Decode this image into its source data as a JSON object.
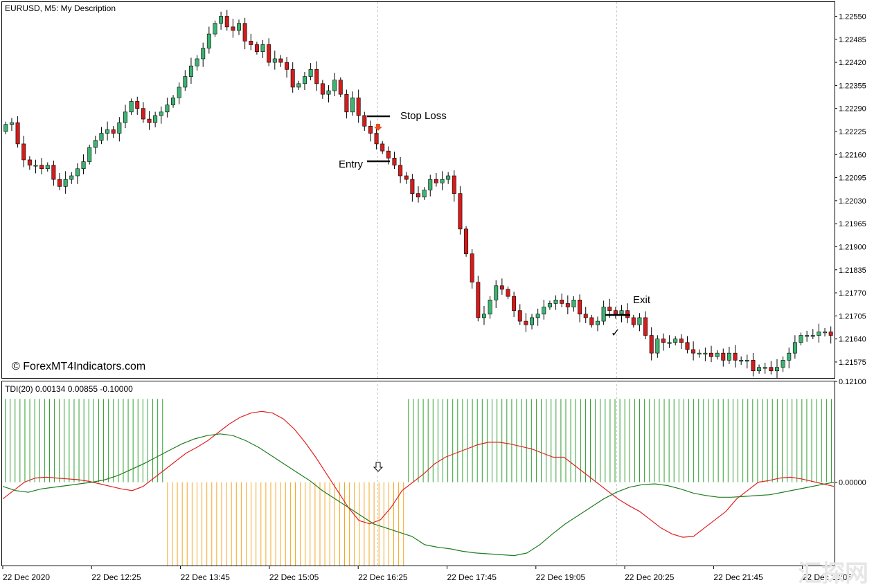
{
  "header": {
    "symbol_label": "EURUSD, M5:  My Description"
  },
  "watermark": "© ForexMT4Indicators.com",
  "corner_logo": "汇探网",
  "annotations": {
    "stop_loss": "Stop Loss",
    "entry": "Entry",
    "exit": "Exit",
    "check_mark": "✓"
  },
  "colors": {
    "bull": "#3cb371",
    "bear": "#d41c1c",
    "tdi_up": "#2e9e2e",
    "tdi_down": "#f5a623",
    "line_green": "#1e7d1e",
    "line_red": "#e02020",
    "arrow": "#e8501e",
    "grid": "#c8c8c8"
  },
  "chart_data": [
    {
      "type": "candlestick",
      "title": "EURUSD, M5:  My Description",
      "y_ticks": [
        "1.22550",
        "1.22485",
        "1.22420",
        "1.22355",
        "1.22290",
        "1.22225",
        "1.22160",
        "1.22095",
        "1.22030",
        "1.21965",
        "1.21900",
        "1.21835",
        "1.21770",
        "1.21705",
        "1.21640",
        "1.21575"
      ],
      "ylim": [
        1.2153,
        1.2259
      ],
      "close": [
        1.22245,
        1.2225,
        1.2219,
        1.22145,
        1.2213,
        1.2213,
        1.2212,
        1.2213,
        1.2209,
        1.2207,
        1.2209,
        1.221,
        1.2212,
        1.2214,
        1.2218,
        1.222,
        1.2222,
        1.2223,
        1.2222,
        1.2225,
        1.2228,
        1.2231,
        1.2229,
        1.2226,
        1.2225,
        1.2227,
        1.2228,
        1.223,
        1.2232,
        1.2235,
        1.2238,
        1.2241,
        1.2243,
        1.2246,
        1.225,
        1.2253,
        1.2255,
        1.2252,
        1.2251,
        1.2253,
        1.2248,
        1.2247,
        1.2245,
        1.2247,
        1.2242,
        1.2243,
        1.2242,
        1.224,
        1.2235,
        1.2236,
        1.2238,
        1.224,
        1.2236,
        1.2233,
        1.2234,
        1.2237,
        1.2233,
        1.2228,
        1.2232,
        1.2227,
        1.2224,
        1.2222,
        1.2219,
        1.2217,
        1.2215,
        1.2213,
        1.221,
        1.2209,
        1.2205,
        1.2204,
        1.2206,
        1.2209,
        1.2208,
        1.2209,
        1.221,
        1.2205,
        1.2195,
        1.2188,
        1.218,
        1.217,
        1.2171,
        1.2175,
        1.2179,
        1.2178,
        1.2176,
        1.2172,
        1.2169,
        1.2168,
        1.217,
        1.2171,
        1.2173,
        1.2174,
        1.2175,
        1.2174,
        1.2173,
        1.2175,
        1.2171,
        1.217,
        1.2168,
        1.2169,
        1.2173,
        1.2172,
        1.2171,
        1.2172,
        1.217,
        1.2168,
        1.217,
        1.2165,
        1.216,
        1.2164,
        1.2163,
        1.2163,
        1.2164,
        1.2163,
        1.2161,
        1.216,
        1.216,
        1.216,
        1.2159,
        1.216,
        1.2158,
        1.216,
        1.2158,
        1.2158,
        1.2158,
        1.2155,
        1.2156,
        1.2156,
        1.2155,
        1.2156,
        1.2158,
        1.216,
        1.2163,
        1.2165,
        1.2165,
        1.2165,
        1.2166,
        1.2166,
        1.2165
      ]
    },
    {
      "type": "line",
      "title": "TDI(20) 0.00134 0.00855 -0.10000",
      "y_ticks": [
        "0.12100",
        "0.00000"
      ],
      "ylim": [
        -0.1,
        0.121
      ],
      "histogram_up_ranges": [
        [
          0,
          32
        ],
        [
          82,
          168
        ]
      ],
      "histogram_down_ranges": [
        [
          33,
          81
        ]
      ],
      "histogram_up_value": 0.1,
      "histogram_down_value": -0.1,
      "series": [
        {
          "values": [
            -0.02,
            -0.01,
            0,
            0.005,
            0.006,
            0.005,
            0.004,
            0.003,
            0.001,
            -0.002,
            -0.005,
            -0.008,
            -0.01,
            -0.005,
            0.005,
            0.015,
            0.025,
            0.035,
            0.042,
            0.05,
            0.06,
            0.07,
            0.078,
            0.083,
            0.085,
            0.083,
            0.076,
            0.064,
            0.048,
            0.03,
            0.01,
            -0.01,
            -0.03,
            -0.046,
            -0.05,
            -0.045,
            -0.03,
            -0.01,
            0,
            0.01,
            0.022,
            0.03,
            0.035,
            0.04,
            0.045,
            0.048,
            0.048,
            0.046,
            0.043,
            0.04,
            0.035,
            0.03,
            0.03,
            0.02,
            0.01,
            0,
            -0.01,
            -0.02,
            -0.028,
            -0.035,
            -0.045,
            -0.055,
            -0.062,
            -0.066,
            -0.065,
            -0.055,
            -0.045,
            -0.035,
            -0.02,
            -0.01,
            0,
            0.002,
            0.005,
            0.006,
            0.004,
            0.001,
            -0.002,
            -0.005
          ]
        },
        {
          "values": [
            -0.005,
            -0.01,
            -0.012,
            -0.008,
            -0.006,
            -0.004,
            -0.002,
            0,
            0.003,
            0.008,
            0.015,
            0.022,
            0.03,
            0.038,
            0.046,
            0.052,
            0.056,
            0.058,
            0.056,
            0.05,
            0.042,
            0.032,
            0.022,
            0.012,
            0.002,
            -0.01,
            -0.02,
            -0.03,
            -0.04,
            -0.05,
            -0.055,
            -0.06,
            -0.065,
            -0.075,
            -0.078,
            -0.08,
            -0.083,
            -0.085,
            -0.086,
            -0.087,
            -0.088,
            -0.085,
            -0.075,
            -0.062,
            -0.05,
            -0.04,
            -0.03,
            -0.02,
            -0.012,
            -0.006,
            -0.003,
            -0.002,
            -0.004,
            -0.008,
            -0.013,
            -0.016,
            -0.018,
            -0.018,
            -0.017,
            -0.016,
            -0.015,
            -0.012,
            -0.009,
            -0.006,
            -0.003,
            0
          ]
        }
      ]
    }
  ],
  "x_tick_labels": [
    "22 Dec 2020",
    "22 Dec 12:25",
    "22 Dec 13:45",
    "22 Dec 15:05",
    "22 Dec 16:25",
    "22 Dec 17:45",
    "22 Dec 19:05",
    "22 Dec 20:25",
    "22 Dec 21:45",
    "22 Dec 23:05"
  ]
}
